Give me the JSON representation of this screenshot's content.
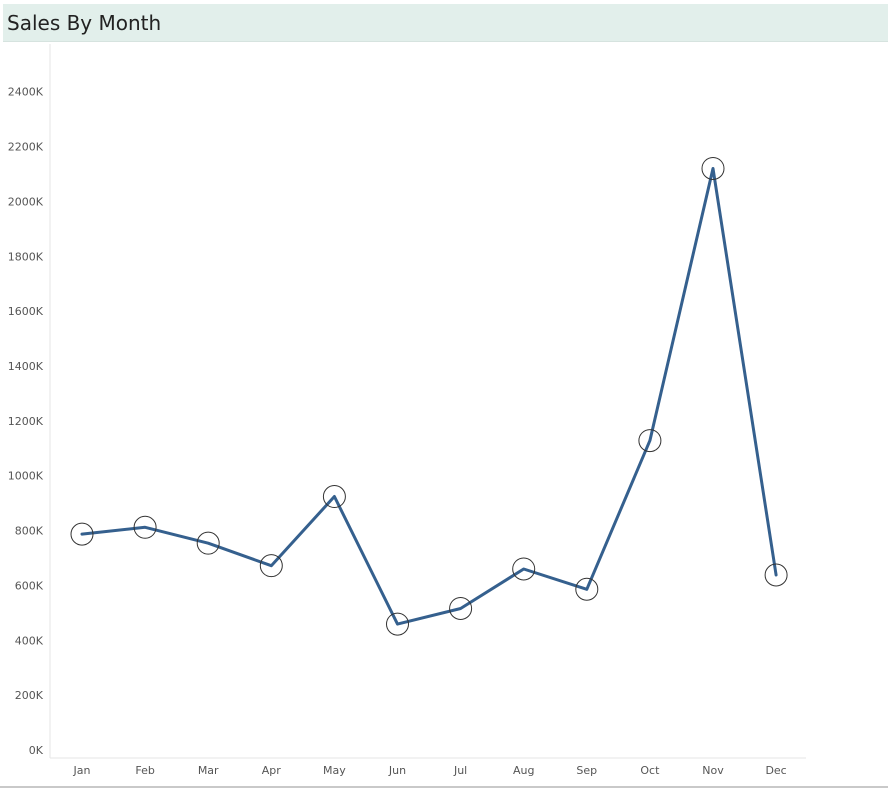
{
  "title": "Sales By Month",
  "colors": {
    "line": "#35608e",
    "marker_stroke": "#333333",
    "title_bg": "#e2efeb",
    "axis_line": "#e6e6e6"
  },
  "chart_data": {
    "type": "line",
    "title": "Sales By Month",
    "xlabel": "",
    "ylabel": "",
    "categories": [
      "Jan",
      "Feb",
      "Mar",
      "Apr",
      "May",
      "Jun",
      "Jul",
      "Aug",
      "Sep",
      "Oct",
      "Nov",
      "Dec"
    ],
    "series": [
      {
        "values": [
          787,
          812,
          754,
          672,
          924,
          459,
          516,
          660,
          586,
          1128,
          2120,
          638
        ]
      }
    ],
    "value_unit_suffix": "K",
    "ylim": [
      0,
      2400
    ],
    "yticks": [
      0,
      200,
      400,
      600,
      800,
      1000,
      1200,
      1400,
      1600,
      1800,
      2000,
      2200,
      2400
    ],
    "ytick_labels": [
      "0K",
      "200K",
      "400K",
      "600K",
      "800K",
      "1000K",
      "1200K",
      "1400K",
      "1600K",
      "1800K",
      "2000K",
      "2200K",
      "2400K"
    ],
    "markers": "open-circle",
    "grid": false,
    "legend": "none"
  }
}
